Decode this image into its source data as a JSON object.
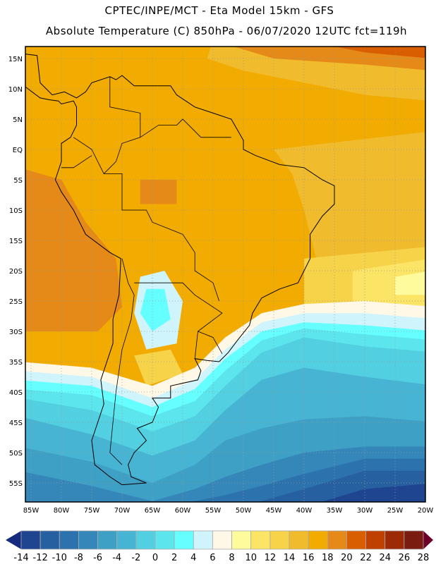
{
  "header": {
    "line1": "CPTEC/INPE/MCT -  Eta Model 15km - GFS",
    "line2": "Absolute Temperature (C) 850hPa - 06/07/2020 12UTC fct=119h"
  },
  "map": {
    "lat_labels": [
      "15N",
      "10N",
      "5N",
      "EQ",
      "5S",
      "10S",
      "15S",
      "20S",
      "25S",
      "30S",
      "35S",
      "40S",
      "45S",
      "50S",
      "55S"
    ],
    "lat_values": [
      15,
      10,
      5,
      0,
      -5,
      -10,
      -15,
      -20,
      -25,
      -30,
      -35,
      -40,
      -45,
      -50,
      -55
    ],
    "lon_labels": [
      "85W",
      "80W",
      "75W",
      "70W",
      "65W",
      "60W",
      "55W",
      "50W",
      "45W",
      "40W",
      "35W",
      "30W",
      "25W",
      "20W"
    ],
    "lon_values": [
      -85,
      -80,
      -75,
      -70,
      -65,
      -60,
      -55,
      -50,
      -45,
      -40,
      -35,
      -30,
      -25,
      -20
    ]
  },
  "colorbar": {
    "labels": [
      "-14",
      "-12",
      "-10",
      "-8",
      "-6",
      "-4",
      "-2",
      "0",
      "2",
      "4",
      "6",
      "8",
      "10",
      "12",
      "14",
      "16",
      "18",
      "20",
      "22",
      "24",
      "26",
      "28"
    ],
    "colors": [
      "#1f4590",
      "#2760a0",
      "#2c72ad",
      "#3586b9",
      "#3fa0c6",
      "#47b4d3",
      "#52cfe0",
      "#5ce5ec",
      "#66ffff",
      "#d0f4fb",
      "#fff8e6",
      "#fefb9c",
      "#fbe466",
      "#f6d348",
      "#f0bb2c",
      "#f2ab00",
      "#e58918",
      "#d85e00",
      "#c04000",
      "#9c2a06",
      "#7a1c10"
    ],
    "under_color": "#172b7e",
    "over_color": "#6c0028"
  }
}
